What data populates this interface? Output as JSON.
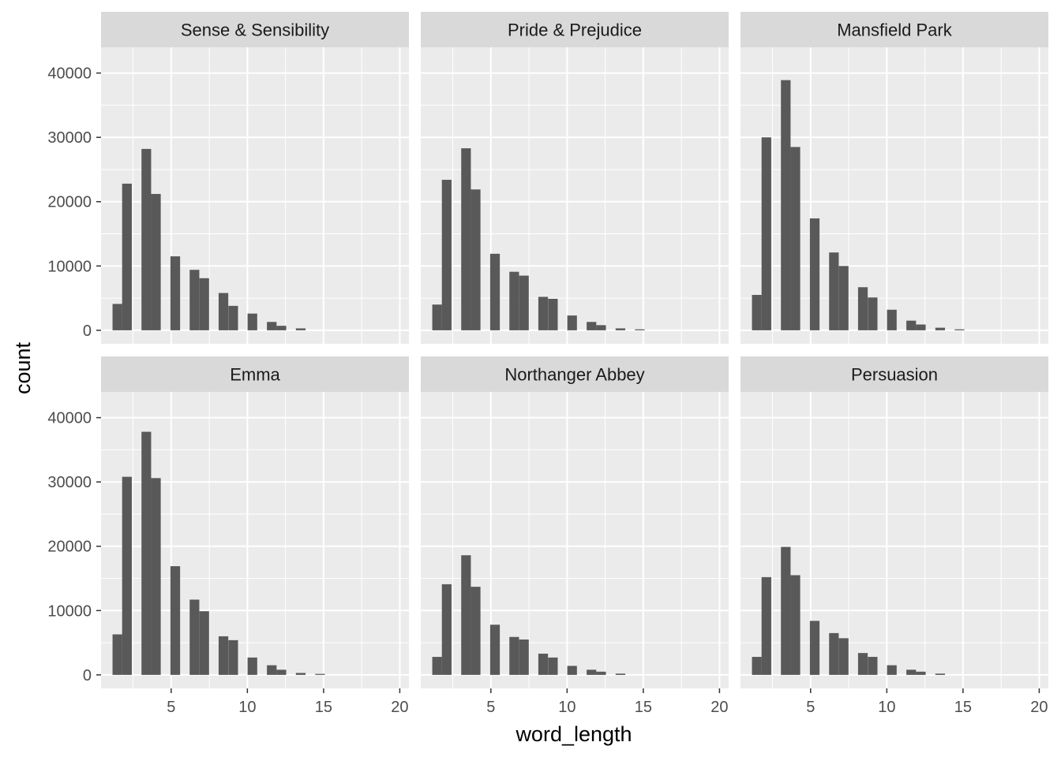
{
  "colors": {
    "panel_bg": "#ebebeb",
    "strip_bg": "#d9d9d9",
    "grid_major": "#ffffff",
    "bar_fill": "#595959",
    "tick_text": "#4d4d4d",
    "tick_mark": "#333333"
  },
  "chart_data": {
    "type": "bar",
    "subtype": "faceted-histogram",
    "xlabel": "word_length",
    "ylabel": "count",
    "xlim": [
      0.4,
      20.6
    ],
    "ylim": [
      -2100,
      44000
    ],
    "x_ticks": [
      5,
      10,
      15,
      20
    ],
    "y_ticks": [
      0,
      10000,
      20000,
      30000,
      40000
    ],
    "grid": true,
    "bin_width": 0.633,
    "bin_centers": [
      1.47,
      2.1,
      3.37,
      4.0,
      5.27,
      6.53,
      7.17,
      8.43,
      9.07,
      10.33,
      11.6,
      12.23,
      13.5,
      14.77
    ],
    "facets": [
      {
        "name": "Sense & Sensibility",
        "values": [
          4100,
          22800,
          28200,
          21200,
          11500,
          9400,
          8100,
          5800,
          3800,
          2600,
          1300,
          700,
          300,
          0
        ]
      },
      {
        "name": "Pride & Prejudice",
        "values": [
          4000,
          23400,
          28300,
          21900,
          11900,
          9100,
          8500,
          5200,
          4900,
          2300,
          1300,
          800,
          300,
          150
        ]
      },
      {
        "name": "Mansfield Park",
        "values": [
          5500,
          30000,
          38900,
          28500,
          17400,
          12100,
          10000,
          6700,
          5100,
          3200,
          1500,
          900,
          400,
          150
        ]
      },
      {
        "name": "Emma",
        "values": [
          6300,
          30800,
          37800,
          30600,
          16900,
          11700,
          9900,
          6000,
          5400,
          2700,
          1500,
          800,
          300,
          150
        ]
      },
      {
        "name": "Northanger Abbey",
        "values": [
          2800,
          14100,
          18600,
          13700,
          7800,
          5900,
          5500,
          3300,
          2700,
          1400,
          800,
          500,
          200,
          0
        ]
      },
      {
        "name": "Persuasion",
        "values": [
          2800,
          15200,
          19900,
          15500,
          8400,
          6500,
          5700,
          3400,
          2800,
          1500,
          800,
          500,
          200,
          0
        ]
      }
    ]
  }
}
